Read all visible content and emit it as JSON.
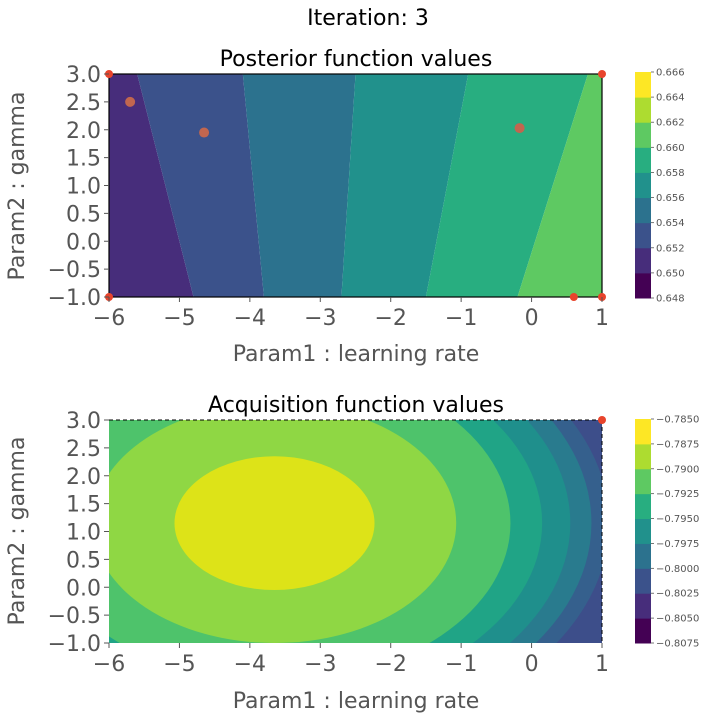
{
  "suptitle": "Iteration: 3",
  "chart_data": [
    {
      "type": "heatmap",
      "title": "Posterior function values",
      "xlabel": "Param1 : learning rate",
      "ylabel": "Param2 : gamma",
      "xlim": [
        -6,
        1
      ],
      "ylim": [
        -1,
        3
      ],
      "x_ticks": [
        "−6",
        "−5",
        "−4",
        "−3",
        "−2",
        "−1",
        "0",
        "1"
      ],
      "y_ticks": [
        "−1.0",
        "−0.5",
        "0.0",
        "0.5",
        "1.0",
        "1.5",
        "2.0",
        "2.5",
        "3.0"
      ],
      "colorbar_levels": [
        0.648,
        0.65,
        0.652,
        0.654,
        0.656,
        0.658,
        0.66,
        0.662,
        0.664,
        0.666
      ],
      "colorbar_ticks": [
        "0.648",
        "0.650",
        "0.652",
        "0.654",
        "0.656",
        "0.658",
        "0.660",
        "0.662",
        "0.664",
        "0.666"
      ],
      "colors": [
        "#440154",
        "#472d7b",
        "#3b528b",
        "#2c728e",
        "#21918c",
        "#28ae80",
        "#5ec962",
        "#addc30",
        "#fde725"
      ],
      "boundaries_at_ymin": [
        -4.8,
        -3.8,
        -2.7,
        -1.5,
        -0.2
      ],
      "boundaries_at_ymax": [
        -5.6,
        -4.1,
        -2.5,
        -0.9,
        0.8
      ],
      "observed_points": [
        {
          "x": -5.7,
          "y": 2.5
        },
        {
          "x": -4.65,
          "y": 1.95
        },
        {
          "x": -0.17,
          "y": 2.03
        },
        {
          "x": 0.6,
          "y": -1.0
        },
        {
          "x": 1.0,
          "y": -1.0
        },
        {
          "x": -6.0,
          "y": -1.0
        },
        {
          "x": 1.0,
          "y": 3.0
        },
        {
          "x": -6.0,
          "y": 3.0
        }
      ],
      "point_color": "#c1664f",
      "edge_point_color": "#e8442c"
    },
    {
      "type": "heatmap",
      "title": "Acquisition function values",
      "xlabel": "Param1 : learning rate",
      "ylabel": "Param2 : gamma",
      "xlim": [
        -6,
        1
      ],
      "ylim": [
        -1,
        3
      ],
      "x_ticks": [
        "−6",
        "−5",
        "−4",
        "−3",
        "−2",
        "−1",
        "0",
        "1"
      ],
      "y_ticks": [
        "−1.0",
        "−0.5",
        "0.0",
        "0.5",
        "1.0",
        "1.5",
        "2.0",
        "2.5",
        "3.0"
      ],
      "colorbar_levels": [
        -0.8075,
        -0.805,
        -0.8025,
        -0.8,
        -0.7975,
        -0.795,
        -0.7925,
        -0.79,
        -0.7875,
        -0.785
      ],
      "colorbar_ticks": [
        "−0.8075",
        "−0.8050",
        "−0.8025",
        "−0.8000",
        "−0.7975",
        "−0.7950",
        "−0.7925",
        "−0.7900",
        "−0.7875",
        "−0.7850"
      ],
      "colors": [
        "#440154",
        "#472d7b",
        "#3b528b",
        "#2c728e",
        "#21918c",
        "#28ae80",
        "#5ec962",
        "#addc30",
        "#fde725"
      ],
      "peak": {
        "x": -3.65,
        "y": 1.15
      },
      "ellipse_radii": [
        {
          "rx": 1.42,
          "ry": 1.2
        },
        {
          "rx": 2.58,
          "ry": 2.15
        },
        {
          "rx": 3.35,
          "ry": 2.85
        },
        {
          "rx": 3.8,
          "ry": 3.2
        },
        {
          "rx": 4.2,
          "ry": 3.55
        },
        {
          "rx": 4.5,
          "ry": 3.8
        },
        {
          "rx": 4.75,
          "ry": 4.0
        }
      ],
      "ellipse_colors": [
        "#dde318",
        "#8fd744",
        "#4ec36b",
        "#20a486",
        "#1f8f8c",
        "#297b8e",
        "#35608d"
      ],
      "background_color": "#3d4e8a",
      "observed_points": [
        {
          "x": 1.0,
          "y": 3.0
        }
      ],
      "edge_point_color": "#e8442c"
    }
  ]
}
